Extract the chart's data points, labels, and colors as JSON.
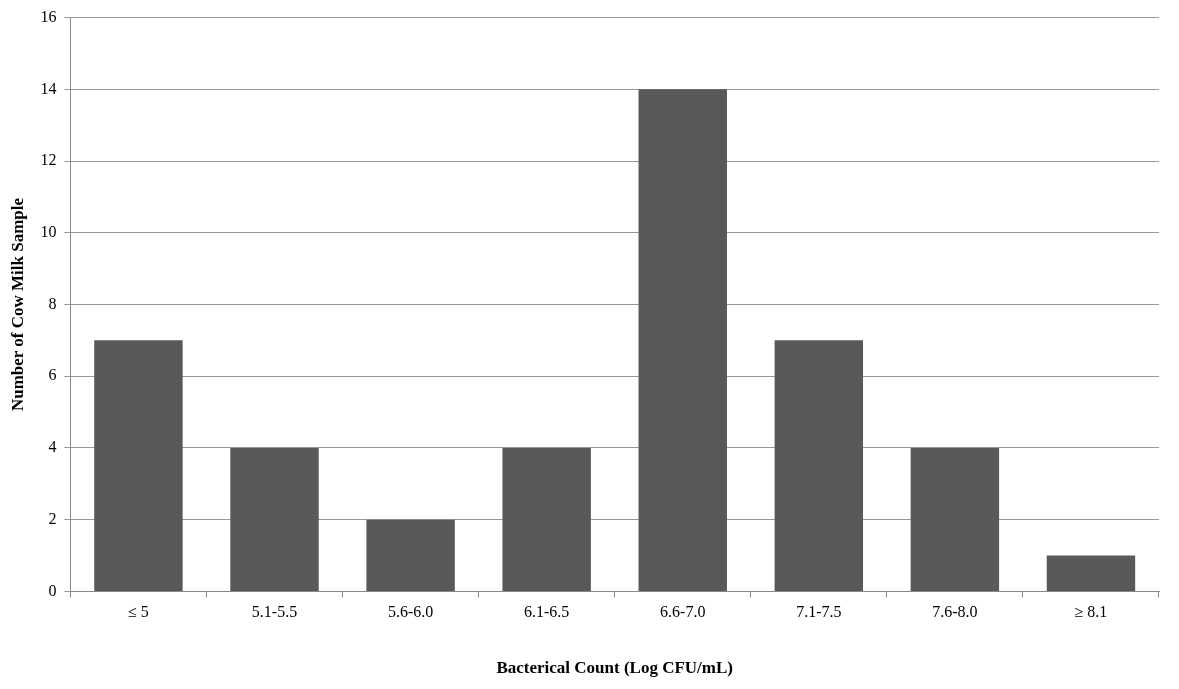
{
  "chart_data": {
    "type": "bar",
    "xlabel": "Bacterical Count (Log CFU/mL)",
    "ylabel": "Number of Cow Milk Sample",
    "categories": [
      "≤ 5",
      "5.1-5.5",
      "5.6-6.0",
      "6.1-6.5",
      "6.6-7.0",
      "7.1-7.5",
      "7.6-8.0",
      "≥ 8.1"
    ],
    "values": [
      7,
      4,
      2,
      4,
      14,
      7,
      4,
      1
    ],
    "color": "#595959",
    "ylim": [
      0,
      16
    ],
    "yticks": [
      0,
      2,
      4,
      6,
      8,
      10,
      12,
      14,
      16
    ],
    "grid": "y",
    "legend": false
  }
}
